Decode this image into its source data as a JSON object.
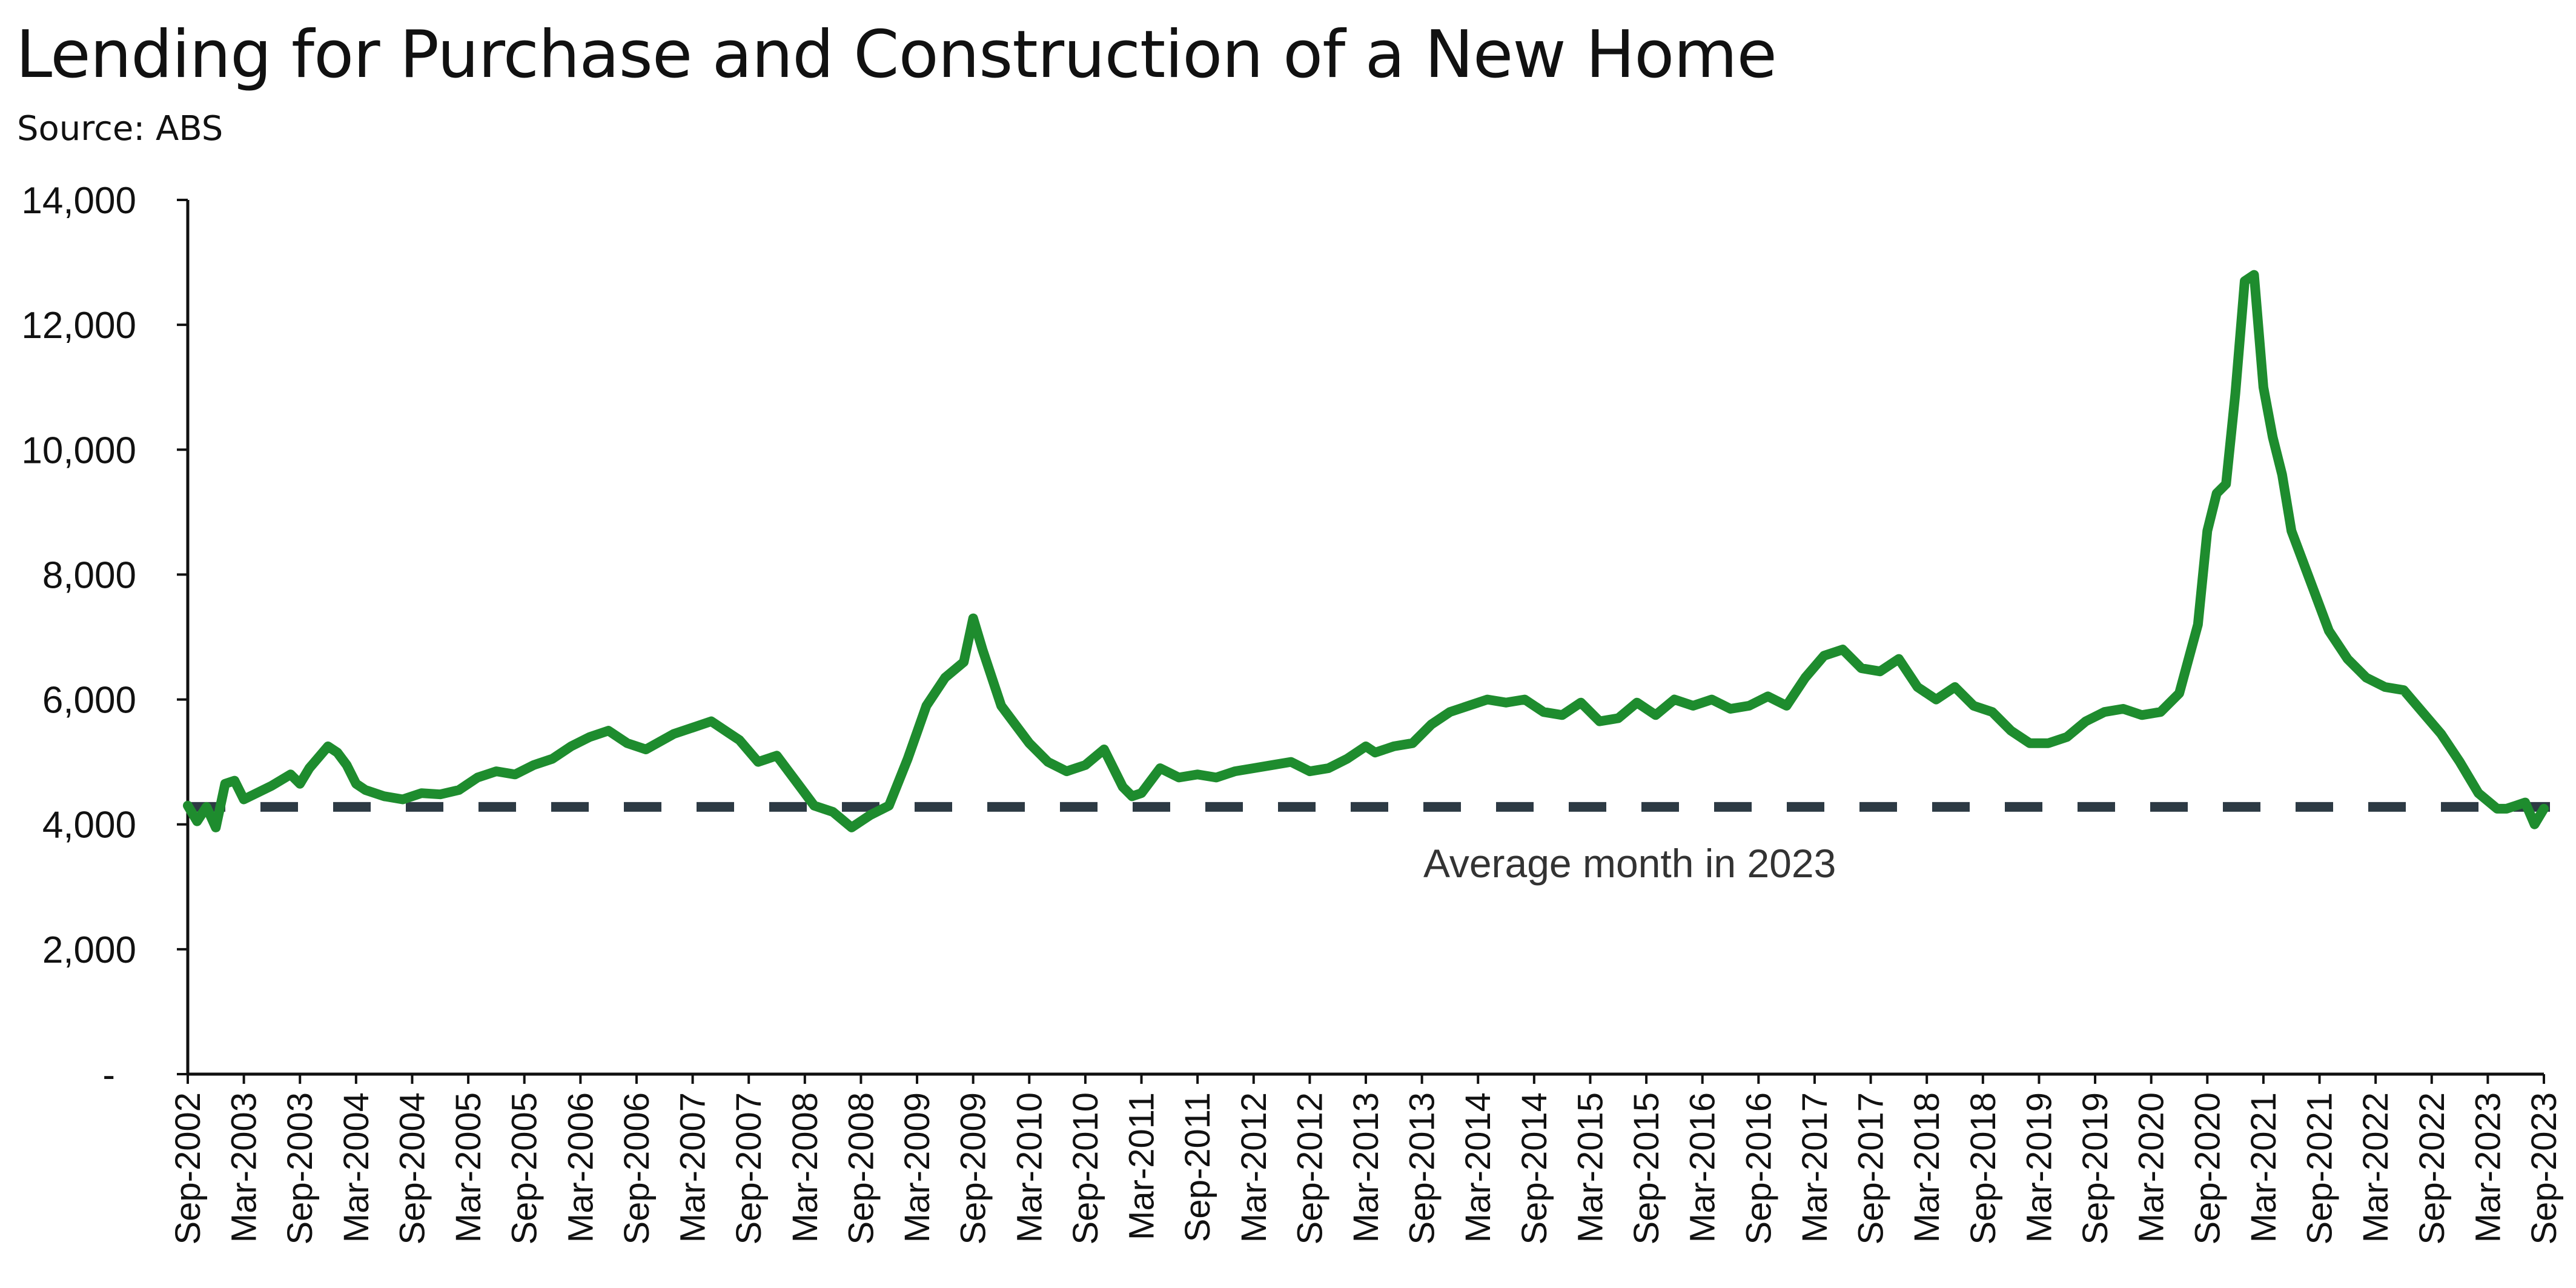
{
  "title": "Lending for Purchase and Construction of a New Home",
  "subtitle": "Source: ABS",
  "colors": {
    "series": "#1e8c2e",
    "reference": "#2d3a44",
    "axis": "#111111"
  },
  "chart_data": {
    "type": "line",
    "title": "Lending for Purchase and Construction of a New Home",
    "xlabel": "",
    "ylabel": "",
    "ylim": [
      0,
      14000
    ],
    "grid": false,
    "y_ticks": [
      {
        "value": 0,
        "label": "-"
      },
      {
        "value": 2000,
        "label": "2,000"
      },
      {
        "value": 4000,
        "label": "4,000"
      },
      {
        "value": 6000,
        "label": "6,000"
      },
      {
        "value": 8000,
        "label": "8,000"
      },
      {
        "value": 10000,
        "label": "10,000"
      },
      {
        "value": 12000,
        "label": "12,000"
      },
      {
        "value": 14000,
        "label": "14,000"
      }
    ],
    "x_start": "2002-09",
    "x_end": "2023-09",
    "x_ticks": [
      "Sep-2002",
      "Mar-2003",
      "Sep-2003",
      "Mar-2004",
      "Sep-2004",
      "Mar-2005",
      "Sep-2005",
      "Mar-2006",
      "Sep-2006",
      "Mar-2007",
      "Sep-2007",
      "Mar-2008",
      "Sep-2008",
      "Mar-2009",
      "Sep-2009",
      "Mar-2010",
      "Sep-2010",
      "Mar-2011",
      "Sep-2011",
      "Mar-2012",
      "Sep-2012",
      "Mar-2013",
      "Sep-2013",
      "Mar-2014",
      "Sep-2014",
      "Mar-2015",
      "Sep-2015",
      "Mar-2016",
      "Sep-2016",
      "Mar-2017",
      "Sep-2017",
      "Mar-2018",
      "Sep-2018",
      "Mar-2019",
      "Sep-2019",
      "Mar-2020",
      "Sep-2020",
      "Mar-2021",
      "Sep-2021",
      "Mar-2022",
      "Sep-2022",
      "Mar-2023",
      "Sep-2023"
    ],
    "series": [
      {
        "x": [
          "2002-09",
          "2002-10",
          "2002-11",
          "2002-12",
          "2003-01",
          "2003-02",
          "2003-03",
          "2003-06",
          "2003-08",
          "2003-09",
          "2003-10",
          "2003-12",
          "2004-01",
          "2004-02",
          "2004-03",
          "2004-04",
          "2004-06",
          "2004-08",
          "2004-10",
          "2004-12",
          "2005-02",
          "2005-04",
          "2005-06",
          "2005-08",
          "2005-10",
          "2005-12",
          "2006-02",
          "2006-04",
          "2006-06",
          "2006-08",
          "2006-10",
          "2007-01",
          "2007-03",
          "2007-05",
          "2007-07",
          "2007-08",
          "2007-10",
          "2007-12",
          "2008-02",
          "2008-04",
          "2008-06",
          "2008-08",
          "2008-09",
          "2008-10",
          "2008-12",
          "2009-02",
          "2009-04",
          "2009-06",
          "2009-08",
          "2009-09",
          "2009-10",
          "2009-12",
          "2010-02",
          "2010-03",
          "2010-05",
          "2010-07",
          "2010-09",
          "2010-11",
          "2011-01",
          "2011-02",
          "2011-03",
          "2011-05",
          "2011-07",
          "2011-09",
          "2011-11",
          "2012-01",
          "2012-03",
          "2012-05",
          "2012-07",
          "2012-09",
          "2012-11",
          "2013-01",
          "2013-03",
          "2013-04",
          "2013-06",
          "2013-08",
          "2013-10",
          "2013-12",
          "2014-02",
          "2014-04",
          "2014-06",
          "2014-08",
          "2014-10",
          "2014-12",
          "2015-02",
          "2015-04",
          "2015-06",
          "2015-08",
          "2015-10",
          "2015-12",
          "2016-02",
          "2016-04",
          "2016-06",
          "2016-08",
          "2016-10",
          "2016-12",
          "2017-02",
          "2017-04",
          "2017-06",
          "2017-08",
          "2017-10",
          "2017-12",
          "2018-02",
          "2018-04",
          "2018-06",
          "2018-08",
          "2018-10",
          "2018-12",
          "2019-02",
          "2019-04",
          "2019-06",
          "2019-08",
          "2019-10",
          "2019-12",
          "2020-02",
          "2020-04",
          "2020-06",
          "2020-08",
          "2020-09",
          "2020-10",
          "2020-11",
          "2020-12",
          "2021-01",
          "2021-02",
          "2021-03",
          "2021-04",
          "2021-05",
          "2021-06",
          "2021-08",
          "2021-10",
          "2021-12",
          "2022-02",
          "2022-04",
          "2022-06",
          "2022-08",
          "2022-10",
          "2022-12",
          "2023-02",
          "2023-04",
          "2023-05",
          "2023-06",
          "2023-07",
          "2023-08",
          "2023-09"
        ],
        "values": [
          4300,
          4050,
          4280,
          3950,
          4650,
          4700,
          4400,
          4620,
          4800,
          4650,
          4900,
          5250,
          5150,
          4950,
          4650,
          4550,
          4450,
          4400,
          4500,
          4480,
          4550,
          4750,
          4850,
          4800,
          4950,
          5050,
          5250,
          5400,
          5500,
          5300,
          5200,
          5450,
          5550,
          5650,
          5450,
          5350,
          5000,
          5100,
          4700,
          4300,
          4200,
          3950,
          4050,
          4150,
          4300,
          5050,
          5900,
          6350,
          6600,
          7300,
          6800,
          5900,
          5500,
          5300,
          5000,
          4850,
          4950,
          5200,
          4600,
          4450,
          4500,
          4900,
          4750,
          4800,
          4750,
          4850,
          4900,
          4950,
          5000,
          4850,
          4900,
          5050,
          5250,
          5150,
          5250,
          5300,
          5600,
          5800,
          5900,
          6000,
          5950,
          6000,
          5800,
          5750,
          5950,
          5650,
          5700,
          5950,
          5750,
          6000,
          5900,
          6000,
          5850,
          5900,
          6050,
          5900,
          6350,
          6700,
          6800,
          6500,
          6450,
          6650,
          6200,
          6000,
          6200,
          5900,
          5800,
          5500,
          5300,
          5300,
          5400,
          5650,
          5800,
          5850,
          5750,
          5800,
          6100,
          7200,
          8700,
          9300,
          9450,
          10900,
          12700,
          12800,
          11000,
          10200,
          9600,
          8700,
          7900,
          7100,
          6650,
          6350,
          6200,
          6150,
          5800,
          5450,
          5000,
          4500,
          4250,
          4250,
          4300,
          4350,
          4000,
          4250
        ]
      },
      {
        "name": "Average month in 2023",
        "style": "dashed",
        "values": [
          4280
        ]
      }
    ]
  }
}
